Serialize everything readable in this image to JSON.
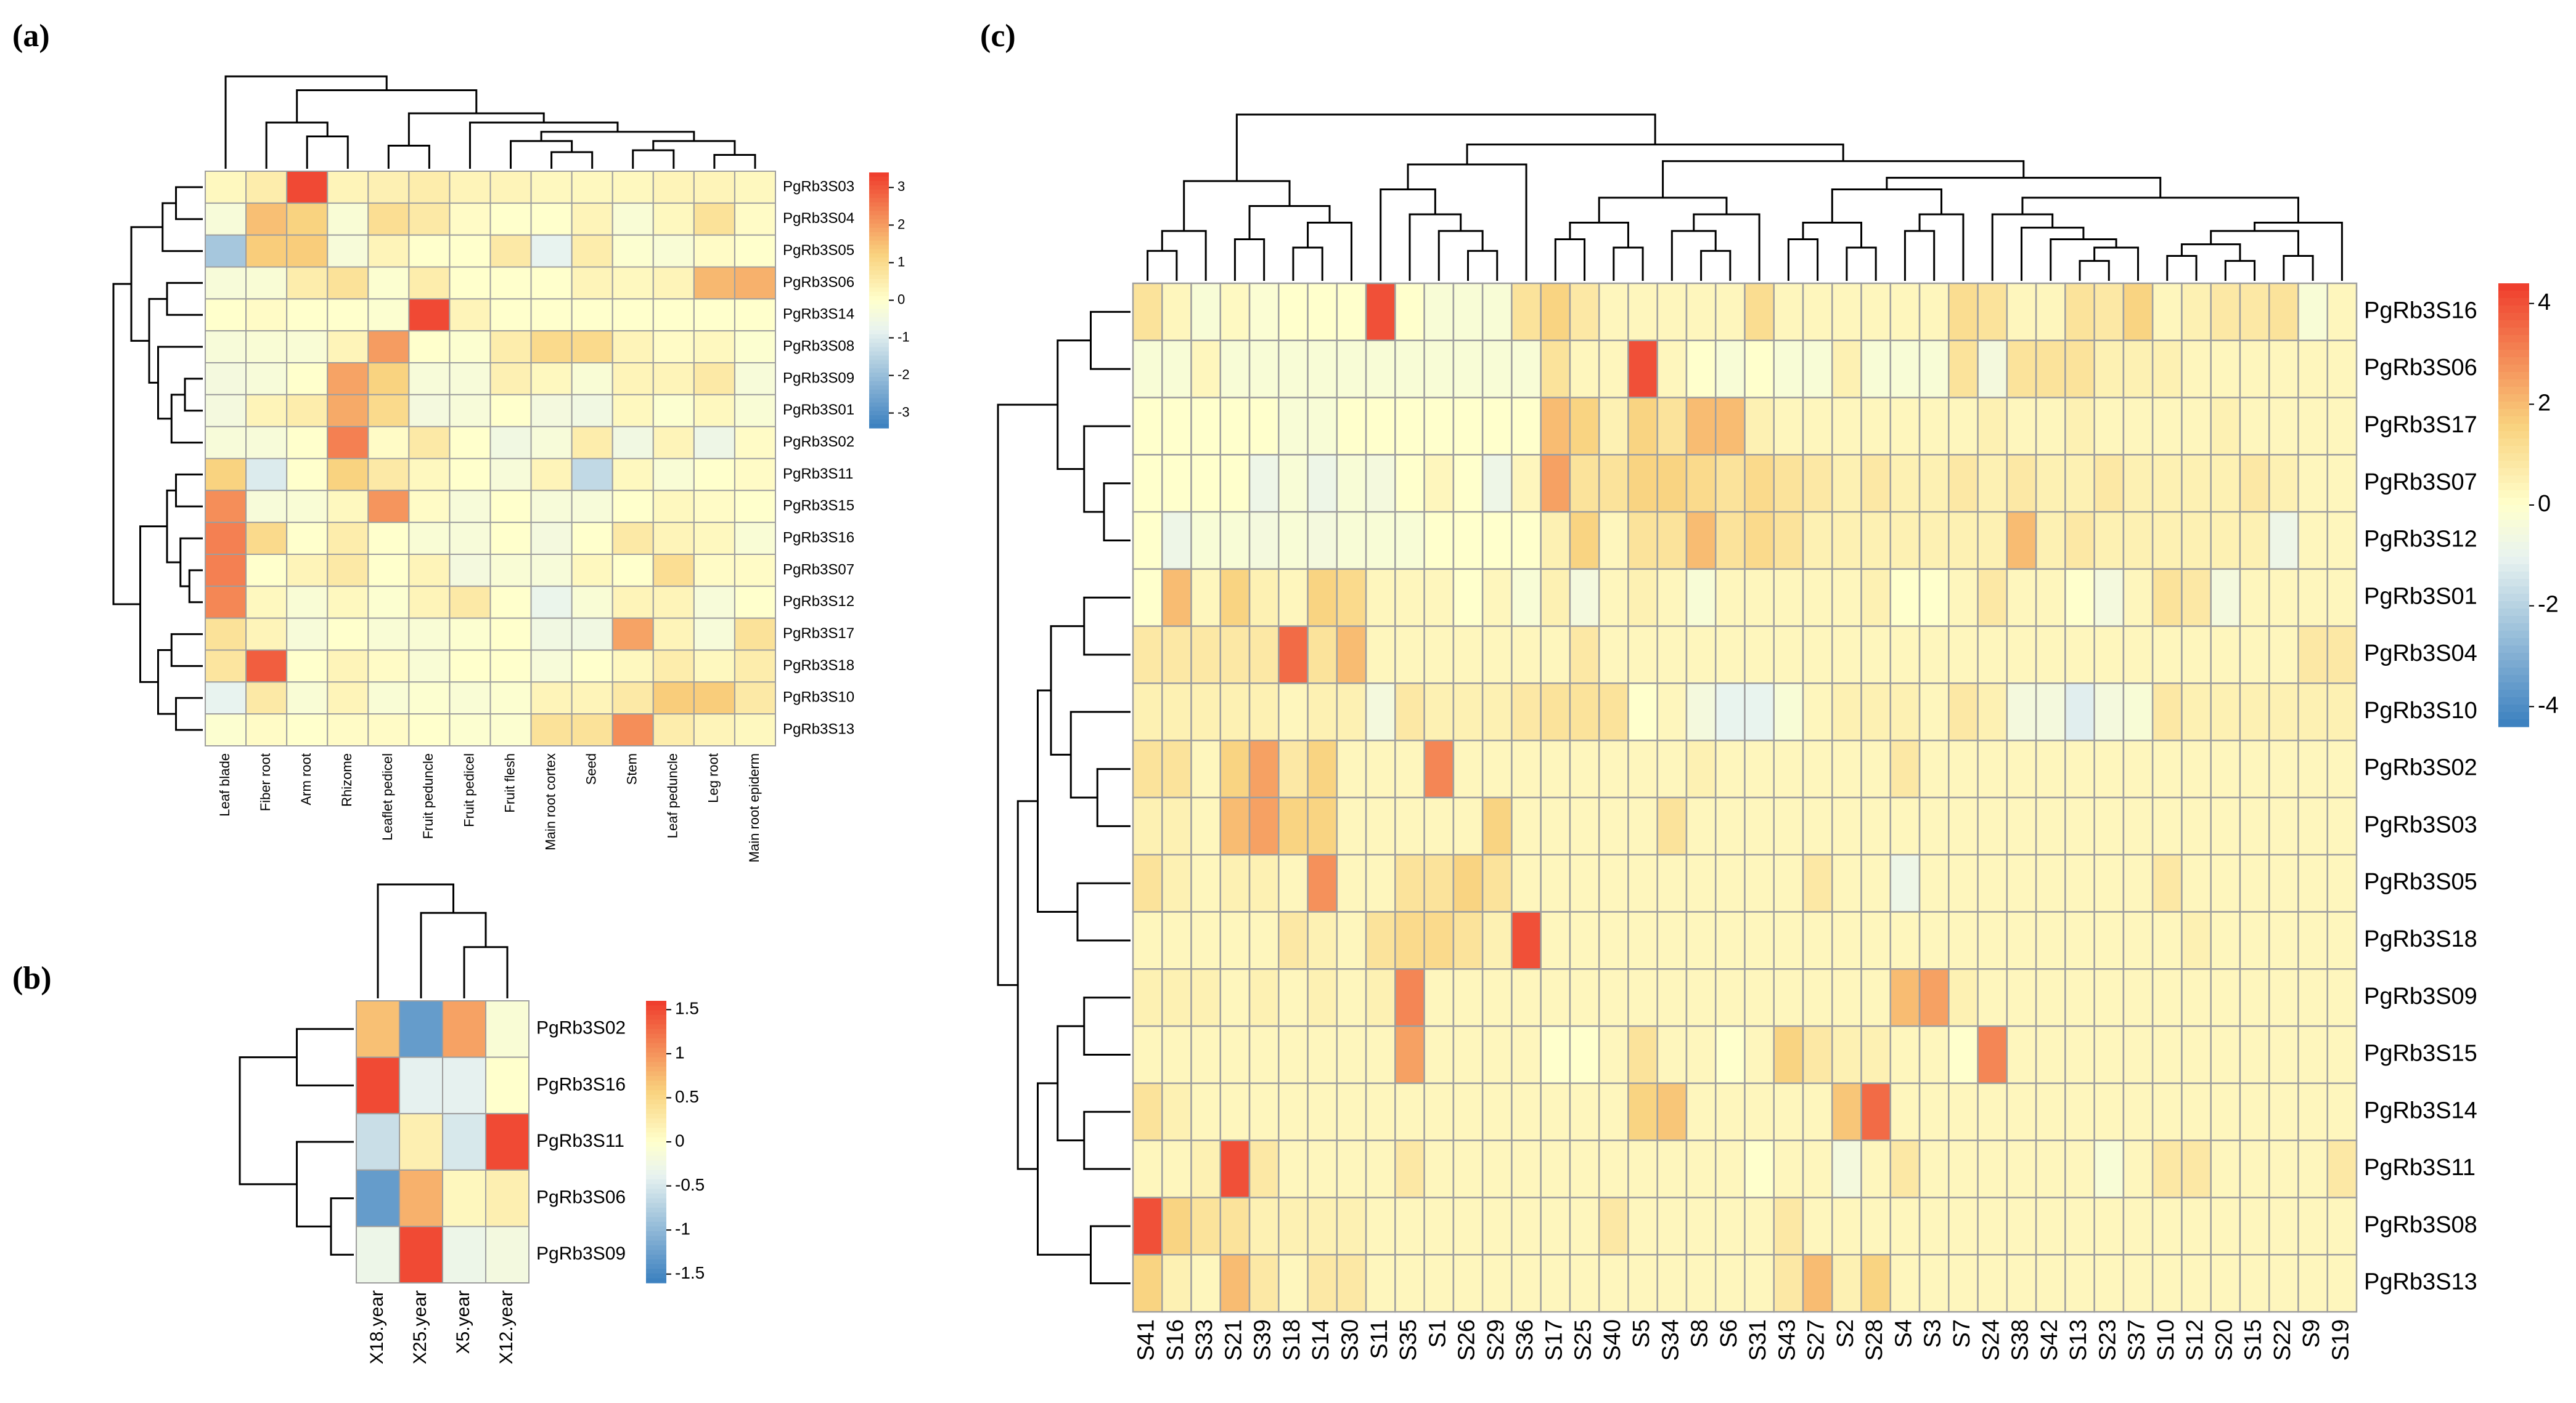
{
  "chart_data": [
    {
      "type": "heatmap",
      "panel": "(a)",
      "rows": [
        "PgRb3S03",
        "PgRb3S04",
        "PgRb3S05",
        "PgRb3S06",
        "PgRb3S14",
        "PgRb3S08",
        "PgRb3S09",
        "PgRb3S01",
        "PgRb3S02",
        "PgRb3S11",
        "PgRb3S15",
        "PgRb3S16",
        "PgRb3S07",
        "PgRb3S12",
        "PgRb3S17",
        "PgRb3S18",
        "PgRb3S10",
        "PgRb3S13"
      ],
      "columns": [
        "Leaf blade",
        "Fiber root",
        "Arm root",
        "Rhizome",
        "Leaflet pedicel",
        "Fruit peduncle",
        "Fruit pedicel",
        "Fruit flesh",
        "Main root cortex",
        "Seed",
        "Stem",
        "Leaf peduncle",
        "Leg root",
        "Main root epiderm"
      ],
      "values": [
        [
          0.2,
          0.5,
          3.2,
          0.3,
          0.4,
          0.5,
          0.3,
          0.3,
          0.2,
          0.2,
          0.2,
          0.3,
          0.3,
          0.2
        ],
        [
          -0.3,
          1.5,
          1.2,
          -0.2,
          0.9,
          0.6,
          0.1,
          0.0,
          0.0,
          0.3,
          -0.2,
          0.2,
          0.8,
          0.1
        ],
        [
          -1.8,
          1.3,
          1.3,
          -0.3,
          0.3,
          0.0,
          0.0,
          0.6,
          -0.8,
          0.5,
          -0.1,
          -0.2,
          0.1,
          0.0
        ],
        [
          -0.3,
          -0.2,
          0.5,
          0.8,
          -0.1,
          0.5,
          0.0,
          0.0,
          0.0,
          0.3,
          0.2,
          0.3,
          1.6,
          1.7
        ],
        [
          0.0,
          0.1,
          0.0,
          0.0,
          -0.1,
          3.2,
          0.3,
          0.0,
          0.0,
          0.0,
          0.0,
          0.0,
          0.0,
          0.0
        ],
        [
          -0.3,
          -0.2,
          -0.2,
          0.3,
          2.0,
          0.0,
          -0.1,
          0.5,
          1.0,
          1.0,
          0.3,
          0.1,
          0.2,
          -0.1
        ],
        [
          -0.4,
          -0.3,
          0.0,
          1.9,
          1.2,
          -0.3,
          -0.3,
          0.4,
          0.2,
          -0.2,
          0.3,
          0.3,
          0.6,
          -0.3
        ],
        [
          -0.4,
          0.3,
          0.5,
          1.8,
          1.0,
          -0.4,
          -0.3,
          0.0,
          -0.4,
          -0.5,
          0.2,
          -0.1,
          0.2,
          -0.2
        ],
        [
          -0.3,
          -0.3,
          0.0,
          2.4,
          0.1,
          0.6,
          0.0,
          -0.5,
          -0.3,
          0.5,
          -0.5,
          0.3,
          -0.6,
          0.1
        ],
        [
          1.2,
          -1.0,
          0.0,
          1.2,
          0.6,
          0.2,
          0.0,
          -0.3,
          0.3,
          -1.4,
          0.2,
          -0.2,
          0.0,
          0.1
        ],
        [
          2.2,
          -0.3,
          -0.2,
          0.2,
          2.1,
          0.1,
          -0.3,
          0.0,
          -0.3,
          -0.3,
          0.0,
          0.2,
          0.1,
          0.0
        ],
        [
          2.4,
          1.0,
          0.0,
          0.5,
          0.0,
          -0.2,
          -0.3,
          0.0,
          -0.4,
          0.0,
          0.6,
          0.3,
          0.2,
          -0.2
        ],
        [
          2.4,
          0.0,
          0.3,
          0.6,
          0.0,
          0.3,
          -0.4,
          -0.2,
          -0.3,
          0.2,
          0.0,
          0.9,
          0.1,
          0.1
        ],
        [
          2.3,
          0.2,
          -0.2,
          0.2,
          -0.1,
          0.3,
          0.6,
          0.0,
          -0.7,
          -0.2,
          0.3,
          0.3,
          -0.3,
          0.0
        ],
        [
          0.8,
          0.3,
          -0.3,
          0.0,
          -0.2,
          -0.2,
          -0.1,
          0.0,
          -0.5,
          -0.5,
          1.9,
          0.3,
          -0.3,
          0.8
        ],
        [
          0.7,
          2.9,
          0.0,
          0.3,
          0.1,
          -0.2,
          0.0,
          0.0,
          -0.3,
          0.0,
          0.2,
          0.5,
          0.2,
          0.5
        ],
        [
          -0.8,
          0.6,
          -0.2,
          0.3,
          -0.2,
          -0.1,
          -0.2,
          -0.1,
          0.3,
          0.3,
          0.6,
          1.3,
          1.3,
          0.6
        ],
        [
          -0.1,
          0.1,
          0.0,
          0.1,
          0.1,
          0.0,
          -0.1,
          -0.1,
          0.8,
          0.8,
          2.2,
          0.5,
          0.3,
          0.2
        ]
      ],
      "legend_ticks": [
        "3",
        "2",
        "1",
        "0",
        "-1",
        "-2",
        "-3"
      ],
      "range": [
        -3.4,
        3.4
      ]
    },
    {
      "type": "heatmap",
      "panel": "(b)",
      "rows": [
        "PgRb3S02",
        "PgRb3S16",
        "PgRb3S11",
        "PgRb3S06",
        "PgRb3S09"
      ],
      "columns": [
        "X18.year",
        "X25.year",
        "X5.year",
        "X12.year"
      ],
      "values": [
        [
          0.7,
          -1.3,
          0.9,
          -0.1
        ],
        [
          1.5,
          -0.4,
          -0.4,
          0.0
        ],
        [
          -0.6,
          0.2,
          -0.5,
          1.5
        ],
        [
          -1.3,
          0.8,
          0.1,
          0.2
        ],
        [
          -0.3,
          1.5,
          -0.3,
          -0.2
        ]
      ],
      "legend_ticks": [
        "1.5",
        "1",
        "0.5",
        "0",
        "-0.5",
        "-1",
        "-1.5"
      ],
      "range": [
        -1.6,
        1.6
      ]
    },
    {
      "type": "heatmap",
      "panel": "(c)",
      "rows": [
        "PgRb3S16",
        "PgRb3S06",
        "PgRb3S17",
        "PgRb3S07",
        "PgRb3S12",
        "PgRb3S01",
        "PgRb3S04",
        "PgRb3S10",
        "PgRb3S02",
        "PgRb3S03",
        "PgRb3S05",
        "PgRb3S18",
        "PgRb3S09",
        "PgRb3S15",
        "PgRb3S14",
        "PgRb3S11",
        "PgRb3S08",
        "PgRb3S13"
      ],
      "columns": [
        "S41",
        "S16",
        "S33",
        "S21",
        "S39",
        "S18",
        "S14",
        "S30",
        "S11",
        "S35",
        "S1",
        "S26",
        "S29",
        "S36",
        "S17",
        "S25",
        "S40",
        "S5",
        "S34",
        "S8",
        "S6",
        "S31",
        "S43",
        "S27",
        "S2",
        "S28",
        "S4",
        "S3",
        "S7",
        "S24",
        "S38",
        "S42",
        "S13",
        "S23",
        "S37",
        "S10",
        "S12",
        "S20",
        "S15",
        "S22",
        "S9",
        "S19"
      ],
      "values": [
        [
          1.0,
          0.3,
          -0.3,
          0.2,
          -0.2,
          0.0,
          0.0,
          0.0,
          4.0,
          0.0,
          -0.3,
          -0.3,
          -0.3,
          1.0,
          1.5,
          0.8,
          0.3,
          0.3,
          0.3,
          0.3,
          0.3,
          1.2,
          0.3,
          0.3,
          0.3,
          0.3,
          0.3,
          0.3,
          1.2,
          1.0,
          0.3,
          0.3,
          1.0,
          0.8,
          1.5,
          0.3,
          0.5,
          0.8,
          0.8,
          1.0,
          -0.3,
          0.3
        ],
        [
          -0.3,
          -0.3,
          0.3,
          -0.3,
          -0.3,
          -0.3,
          -0.3,
          -0.3,
          -0.3,
          -0.3,
          -0.3,
          -0.3,
          -0.3,
          -0.3,
          1.0,
          0.3,
          0.3,
          4.0,
          0.3,
          0.0,
          -0.3,
          0.0,
          -0.3,
          -0.3,
          0.5,
          -0.3,
          -0.3,
          -0.3,
          1.0,
          -0.5,
          1.0,
          1.0,
          1.0,
          0.5,
          0.5,
          0.5,
          0.3,
          0.3,
          0.3,
          0.3,
          0.3,
          0.3
        ],
        [
          0.0,
          0.0,
          0.0,
          0.0,
          0.0,
          -0.3,
          -0.3,
          0.0,
          0.0,
          0.0,
          0.0,
          0.0,
          0.0,
          0.0,
          2.0,
          1.5,
          0.5,
          1.5,
          1.0,
          2.0,
          2.0,
          0.5,
          0.3,
          0.3,
          0.3,
          0.3,
          0.3,
          0.3,
          0.3,
          0.5,
          0.3,
          0.3,
          0.5,
          0.3,
          0.3,
          0.3,
          0.3,
          0.5,
          0.3,
          0.3,
          0.3,
          0.3
        ],
        [
          0.0,
          0.0,
          0.0,
          0.0,
          -0.8,
          -0.3,
          -0.8,
          -0.3,
          -0.5,
          0.0,
          0.3,
          0.0,
          -0.8,
          0.3,
          2.5,
          1.0,
          1.0,
          1.5,
          1.5,
          1.3,
          1.0,
          1.3,
          1.0,
          0.8,
          0.5,
          0.8,
          0.5,
          0.5,
          0.8,
          0.5,
          0.8,
          0.5,
          0.5,
          0.8,
          0.5,
          0.5,
          0.5,
          0.5,
          0.8,
          0.5,
          0.3,
          0.3
        ],
        [
          0.0,
          -0.8,
          -0.3,
          -0.3,
          -0.5,
          -0.3,
          -0.5,
          -0.3,
          -0.3,
          -0.3,
          0.0,
          0.0,
          0.0,
          0.0,
          0.5,
          1.5,
          0.3,
          1.0,
          1.0,
          2.0,
          1.0,
          1.3,
          1.0,
          0.5,
          0.5,
          0.5,
          0.5,
          0.5,
          0.5,
          0.5,
          2.0,
          0.5,
          0.8,
          0.5,
          0.5,
          0.5,
          0.5,
          0.5,
          0.5,
          -0.8,
          0.3,
          0.3
        ],
        [
          0.0,
          2.0,
          0.3,
          1.5,
          0.5,
          0.3,
          1.5,
          1.3,
          0.3,
          0.3,
          0.3,
          0.0,
          0.3,
          -0.3,
          0.5,
          -0.5,
          0.3,
          0.5,
          0.3,
          -0.3,
          0.3,
          0.3,
          0.3,
          0.3,
          0.3,
          0.5,
          0.0,
          0.0,
          0.3,
          0.8,
          0.3,
          0.3,
          0.0,
          -0.5,
          0.3,
          1.0,
          0.8,
          -0.5,
          0.3,
          0.3,
          0.3,
          0.3
        ],
        [
          0.8,
          0.8,
          0.8,
          0.8,
          0.8,
          3.5,
          1.0,
          2.0,
          0.3,
          0.3,
          0.3,
          0.3,
          0.3,
          0.3,
          0.3,
          0.8,
          0.3,
          0.3,
          0.3,
          0.3,
          0.3,
          0.3,
          0.3,
          0.3,
          0.3,
          0.3,
          0.3,
          0.3,
          0.3,
          0.3,
          0.3,
          0.3,
          0.3,
          0.3,
          0.3,
          0.3,
          0.3,
          0.3,
          0.3,
          0.3,
          0.8,
          0.8
        ],
        [
          0.5,
          0.5,
          0.5,
          0.5,
          0.5,
          0.3,
          0.5,
          0.5,
          -0.5,
          0.8,
          0.5,
          0.5,
          0.5,
          0.8,
          1.0,
          1.0,
          1.0,
          0.0,
          0.3,
          -0.5,
          -1.0,
          -1.0,
          -0.3,
          0.3,
          0.5,
          0.5,
          0.5,
          0.3,
          0.8,
          0.5,
          -0.5,
          -0.5,
          -1.2,
          -0.5,
          -0.3,
          0.8,
          0.5,
          0.5,
          0.5,
          0.5,
          0.5,
          0.5
        ],
        [
          1.0,
          1.0,
          0.3,
          1.5,
          2.5,
          0.8,
          1.5,
          0.3,
          0.3,
          0.3,
          3.0,
          0.3,
          0.3,
          0.3,
          0.3,
          0.3,
          0.3,
          0.3,
          0.3,
          0.5,
          0.3,
          0.3,
          0.3,
          0.3,
          0.3,
          0.3,
          0.8,
          0.3,
          0.3,
          0.3,
          0.3,
          0.3,
          0.3,
          0.3,
          0.3,
          0.3,
          0.3,
          0.3,
          0.3,
          0.3,
          0.3,
          0.3
        ],
        [
          0.5,
          0.5,
          0.3,
          2.0,
          2.5,
          1.5,
          1.5,
          0.3,
          0.3,
          0.3,
          0.3,
          0.3,
          1.5,
          0.3,
          0.3,
          0.3,
          0.3,
          0.3,
          1.0,
          0.3,
          0.3,
          0.3,
          0.3,
          0.3,
          0.3,
          0.3,
          0.3,
          0.3,
          0.3,
          0.3,
          0.3,
          0.3,
          0.3,
          0.3,
          0.3,
          0.3,
          0.3,
          0.3,
          0.3,
          0.3,
          0.3,
          0.3
        ],
        [
          1.0,
          0.5,
          0.3,
          0.5,
          0.5,
          0.3,
          2.8,
          0.3,
          0.3,
          1.0,
          1.0,
          1.5,
          1.0,
          0.3,
          0.3,
          0.3,
          0.3,
          0.3,
          0.3,
          0.3,
          0.3,
          0.3,
          0.3,
          0.8,
          0.3,
          0.3,
          -0.8,
          0.3,
          0.3,
          0.3,
          0.3,
          0.3,
          0.3,
          0.3,
          0.3,
          0.8,
          0.3,
          0.3,
          0.3,
          0.3,
          0.3,
          0.3
        ],
        [
          0.3,
          0.3,
          0.3,
          0.3,
          0.3,
          0.8,
          0.5,
          0.3,
          1.0,
          1.3,
          1.3,
          1.0,
          0.5,
          4.0,
          0.3,
          0.3,
          0.3,
          0.3,
          0.3,
          0.3,
          0.3,
          0.3,
          0.3,
          0.3,
          0.3,
          0.3,
          0.3,
          0.3,
          0.3,
          0.3,
          0.3,
          0.3,
          0.3,
          0.3,
          0.3,
          0.3,
          0.5,
          0.3,
          0.3,
          0.3,
          0.3,
          0.3
        ],
        [
          0.5,
          0.5,
          0.5,
          0.3,
          0.5,
          0.3,
          0.5,
          0.3,
          0.5,
          3.0,
          0.3,
          0.3,
          0.3,
          0.3,
          0.3,
          0.3,
          0.3,
          0.3,
          0.3,
          0.3,
          0.3,
          0.3,
          0.3,
          0.3,
          0.3,
          0.3,
          2.0,
          2.5,
          0.5,
          0.3,
          0.3,
          0.3,
          0.3,
          0.3,
          0.3,
          0.3,
          0.3,
          0.3,
          0.3,
          0.3,
          0.3,
          0.3
        ],
        [
          0.3,
          0.3,
          0.3,
          0.3,
          0.3,
          0.3,
          0.3,
          0.3,
          0.3,
          2.5,
          0.3,
          0.3,
          0.3,
          0.3,
          0.0,
          0.0,
          0.3,
          1.0,
          0.3,
          0.3,
          0.0,
          0.3,
          1.5,
          0.8,
          0.5,
          0.5,
          0.3,
          0.3,
          0.0,
          3.0,
          0.3,
          0.3,
          0.3,
          0.3,
          0.3,
          0.3,
          0.3,
          0.3,
          0.3,
          0.3,
          0.3,
          0.3
        ],
        [
          1.0,
          0.5,
          0.3,
          0.3,
          0.3,
          0.3,
          0.3,
          0.3,
          0.3,
          0.3,
          0.3,
          0.3,
          0.3,
          0.3,
          0.3,
          0.3,
          0.3,
          1.5,
          1.8,
          0.3,
          0.3,
          0.3,
          0.3,
          0.3,
          1.8,
          3.5,
          0.3,
          0.3,
          0.3,
          0.3,
          0.3,
          0.3,
          0.3,
          0.3,
          0.3,
          0.3,
          0.3,
          0.3,
          0.3,
          0.3,
          0.3,
          0.3
        ],
        [
          0.3,
          0.3,
          0.5,
          4.0,
          0.8,
          0.3,
          0.3,
          0.3,
          0.3,
          0.8,
          0.3,
          0.3,
          0.3,
          0.3,
          0.3,
          0.3,
          0.3,
          0.3,
          0.3,
          0.3,
          0.3,
          0.0,
          0.3,
          0.3,
          -0.5,
          0.3,
          0.8,
          0.3,
          0.3,
          0.3,
          0.3,
          0.3,
          0.3,
          -0.3,
          0.3,
          0.8,
          0.8,
          0.3,
          0.3,
          0.3,
          0.3,
          0.8
        ],
        [
          4.0,
          1.5,
          1.0,
          1.0,
          0.5,
          0.5,
          0.5,
          0.5,
          0.3,
          0.3,
          0.3,
          0.3,
          0.3,
          0.3,
          0.3,
          0.3,
          0.8,
          0.3,
          0.3,
          0.3,
          0.3,
          0.3,
          0.8,
          0.3,
          0.3,
          0.3,
          0.3,
          0.3,
          0.3,
          0.3,
          0.3,
          0.3,
          0.3,
          0.3,
          0.3,
          0.3,
          0.3,
          0.3,
          0.3,
          0.3,
          0.3,
          0.3
        ],
        [
          1.5,
          0.5,
          0.3,
          2.0,
          0.8,
          0.3,
          0.8,
          0.8,
          0.3,
          0.3,
          0.3,
          0.3,
          0.3,
          0.3,
          0.3,
          0.3,
          0.3,
          0.3,
          0.3,
          0.3,
          0.3,
          0.3,
          0.8,
          2.0,
          0.5,
          1.5,
          0.3,
          0.3,
          0.3,
          0.3,
          0.3,
          0.3,
          0.3,
          0.3,
          0.3,
          0.3,
          0.3,
          0.3,
          0.3,
          0.3,
          0.3,
          0.3
        ]
      ],
      "legend_ticks": [
        "4",
        "2",
        "0",
        "-2",
        "-4"
      ],
      "range": [
        -4.4,
        4.4
      ]
    }
  ],
  "colors": {
    "low": "#3A7FBF",
    "mid_low": "#E8F3F0",
    "mid": "#FFFFCC",
    "mid_high": "#F9D27E",
    "high": "#EF3B2C",
    "grid": "#9E9E9E"
  }
}
